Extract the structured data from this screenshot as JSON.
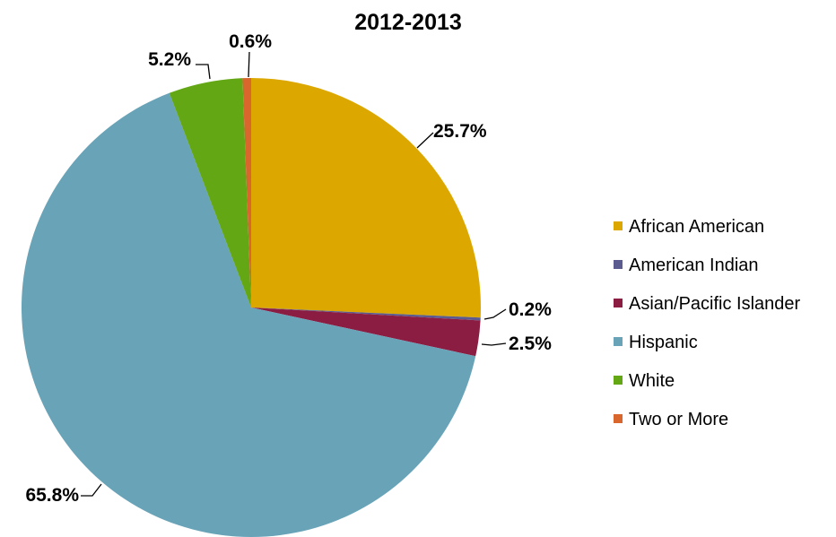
{
  "chart_data": {
    "type": "pie",
    "title": "2012-2013",
    "legend_position": "right",
    "slices": [
      {
        "name": "African American",
        "value": 25.7,
        "label": "25.7%",
        "color": "#DCA800"
      },
      {
        "name": "American Indian",
        "value": 0.2,
        "label": "0.2%",
        "color": "#5B5B8F"
      },
      {
        "name": "Asian/Pacific Islander",
        "value": 2.5,
        "label": "2.5%",
        "color": "#8B1D43"
      },
      {
        "name": "Hispanic",
        "value": 65.8,
        "label": "65.8%",
        "color": "#68A3B8"
      },
      {
        "name": "White",
        "value": 5.2,
        "label": "5.2%",
        "color": "#63A814"
      },
      {
        "name": "Two or More",
        "value": 0.6,
        "label": "0.6%",
        "color": "#D9662D"
      }
    ]
  }
}
